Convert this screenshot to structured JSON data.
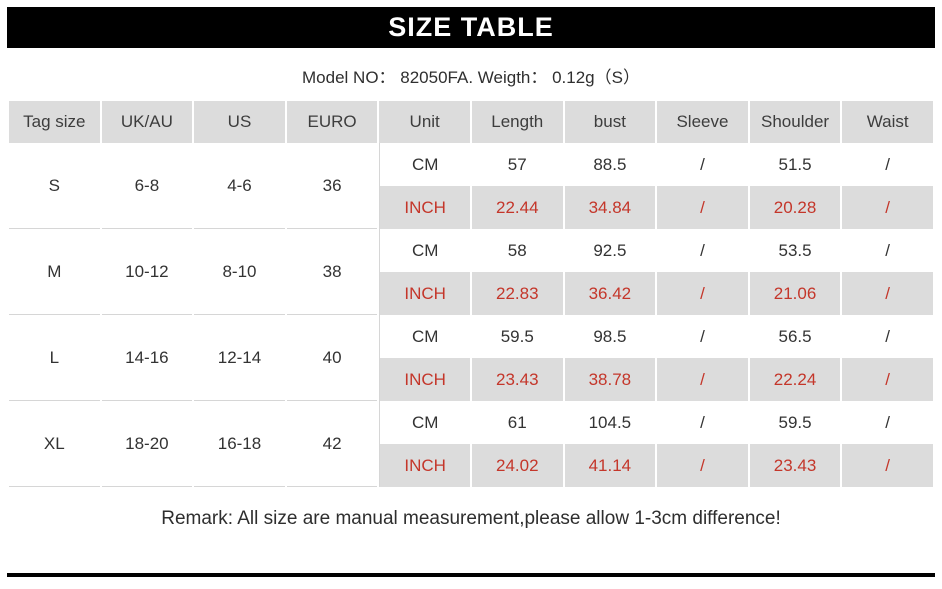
{
  "page": {
    "title": "SIZE TABLE",
    "model_line": "Model NO： 82050FA. Weigth： 0.12g（S）",
    "remark": "Remark: All size are manual measurement,please allow 1-3cm difference!"
  },
  "colors": {
    "band_gray": "#dcdcdc",
    "inch_red": "#c4362a",
    "bar_black": "#000000"
  },
  "table": {
    "headers": [
      "Tag size",
      "UK/AU",
      "US",
      "EURO",
      "Unit",
      "Length",
      "bust",
      "Sleeve",
      "Shoulder",
      "Waist"
    ],
    "unit_labels": [
      "CM",
      "INCH"
    ],
    "groups": [
      {
        "tag": "S",
        "uk_au": "6-8",
        "us": "4-6",
        "euro": "36",
        "cm": [
          "57",
          "88.5",
          "/",
          "51.5",
          "/"
        ],
        "inch": [
          "22.44",
          "34.84",
          "/",
          "20.28",
          "/"
        ]
      },
      {
        "tag": "M",
        "uk_au": "10-12",
        "us": "8-10",
        "euro": "38",
        "cm": [
          "58",
          "92.5",
          "/",
          "53.5",
          "/"
        ],
        "inch": [
          "22.83",
          "36.42",
          "/",
          "21.06",
          "/"
        ]
      },
      {
        "tag": "L",
        "uk_au": "14-16",
        "us": "12-14",
        "euro": "40",
        "cm": [
          "59.5",
          "98.5",
          "/",
          "56.5",
          "/"
        ],
        "inch": [
          "23.43",
          "38.78",
          "/",
          "22.24",
          "/"
        ]
      },
      {
        "tag": "XL",
        "uk_au": "18-20",
        "us": "16-18",
        "euro": "42",
        "cm": [
          "61",
          "104.5",
          "/",
          "59.5",
          "/"
        ],
        "inch": [
          "24.02",
          "41.14",
          "/",
          "23.43",
          "/"
        ]
      }
    ]
  }
}
